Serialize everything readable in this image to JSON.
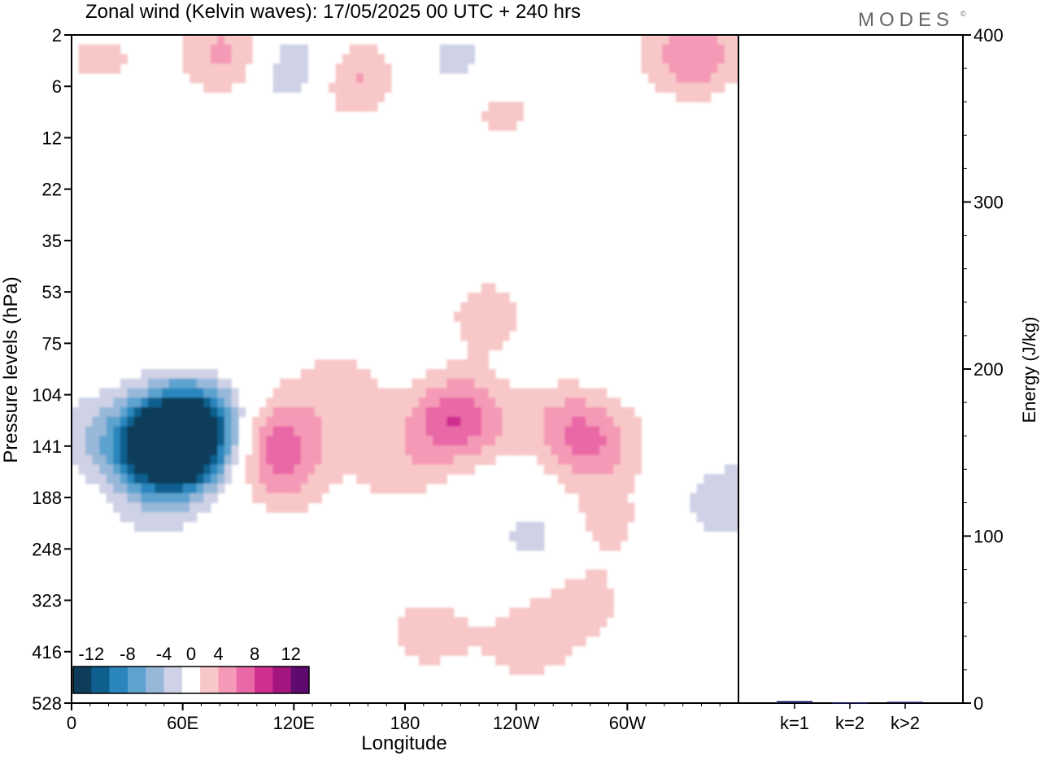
{
  "title": "Zonal wind (Kelvin waves):  17/05/2025  00 UTC  + 240 hrs",
  "brand": "MODES",
  "brand_mark": "©",
  "chart_data": [
    {
      "type": "heatmap",
      "title": "Zonal wind (Kelvin waves):  17/05/2025  00 UTC  + 240 hrs",
      "xlabel": "Longitude",
      "ylabel": "Pressure levels (hPa)",
      "x_ticks": [
        "0",
        "60E",
        "120E",
        "180",
        "120W",
        "60W"
      ],
      "x_tick_degrees": [
        0,
        60,
        120,
        180,
        240,
        300
      ],
      "xlim": [
        0,
        360
      ],
      "y_ticks": [
        "2",
        "6",
        "12",
        "22",
        "35",
        "53",
        "75",
        "104",
        "141",
        "188",
        "248",
        "323",
        "416",
        "528"
      ],
      "y_axis_inverted": true,
      "colorbar": {
        "labels": [
          "-12",
          "-8",
          "-4",
          "0",
          "4",
          "8",
          "12"
        ],
        "levels": [
          -14,
          -12,
          -10,
          -8,
          -6,
          -4,
          -2,
          2,
          4,
          6,
          8,
          10,
          12,
          14
        ],
        "colors": [
          "#0d3d5a",
          "#0e5f8e",
          "#2a86bd",
          "#5da3cf",
          "#98b8da",
          "#cfd2e6",
          "#ffffff",
          "#f8c8c8",
          "#f59ab6",
          "#e968a6",
          "#cf2f8f",
          "#a3157f",
          "#5e0a6e"
        ]
      },
      "blobs": [
        {
          "lon": 50,
          "lev": 143,
          "value": -14
        },
        {
          "lon": 60,
          "lev": 138,
          "value": -10
        },
        {
          "lon": 65,
          "lev": 122,
          "value": -6
        },
        {
          "lon": 78,
          "lev": 100,
          "value": -3
        },
        {
          "lon": 45,
          "lev": 200,
          "value": -2
        },
        {
          "lon": 10,
          "lev": 130,
          "value": -3
        },
        {
          "lon": 85,
          "lev": 85,
          "value": 3
        },
        {
          "lon": 110,
          "lev": 135,
          "value": 6
        },
        {
          "lon": 115,
          "lev": 170,
          "value": 3
        },
        {
          "lon": 145,
          "lev": 100,
          "value": 3
        },
        {
          "lon": 175,
          "lev": 160,
          "value": 3
        },
        {
          "lon": 205,
          "lev": 120,
          "value": 3
        },
        {
          "lon": 210,
          "lev": 120,
          "value": 5
        },
        {
          "lon": 265,
          "lev": 120,
          "value": 3
        },
        {
          "lon": 282,
          "lev": 140,
          "value": 5
        },
        {
          "lon": 285,
          "lev": 215,
          "value": 3
        },
        {
          "lon": 275,
          "lev": 330,
          "value": 3
        },
        {
          "lon": 192,
          "lev": 380,
          "value": 3
        },
        {
          "lon": 245,
          "lev": 400,
          "value": 3
        },
        {
          "lon": 253,
          "lev": 230,
          "value": -3
        },
        {
          "lon": 348,
          "lev": 115,
          "value": 3
        },
        {
          "lon": 355,
          "lev": 190,
          "value": -4
        },
        {
          "lon": 345,
          "lev": 95,
          "value": -2
        },
        {
          "lon": 85,
          "lev": 3,
          "value": 5
        },
        {
          "lon": 120,
          "lev": 4,
          "value": -5
        },
        {
          "lon": 150,
          "lev": 5,
          "value": 5
        },
        {
          "lon": 210,
          "lev": 4,
          "value": -3
        },
        {
          "lon": 230,
          "lev": 8,
          "value": 3
        },
        {
          "lon": 335,
          "lev": 3,
          "value": 6
        },
        {
          "lon": 15,
          "lev": 4,
          "value": 3
        },
        {
          "lon": 10,
          "lev": 9,
          "value": -2
        },
        {
          "lon": 225,
          "lev": 62,
          "value": 3
        }
      ]
    },
    {
      "type": "bar",
      "ylabel": "Energy (J/kg)",
      "categories": [
        "k=1",
        "k=2",
        "k>2"
      ],
      "values": [
        1.2,
        0.4,
        0.8
      ],
      "ylim": [
        0,
        400
      ],
      "y_ticks": [
        "0",
        "100",
        "200",
        "300",
        "400"
      ],
      "bar_color": "#1a1a5e"
    }
  ]
}
